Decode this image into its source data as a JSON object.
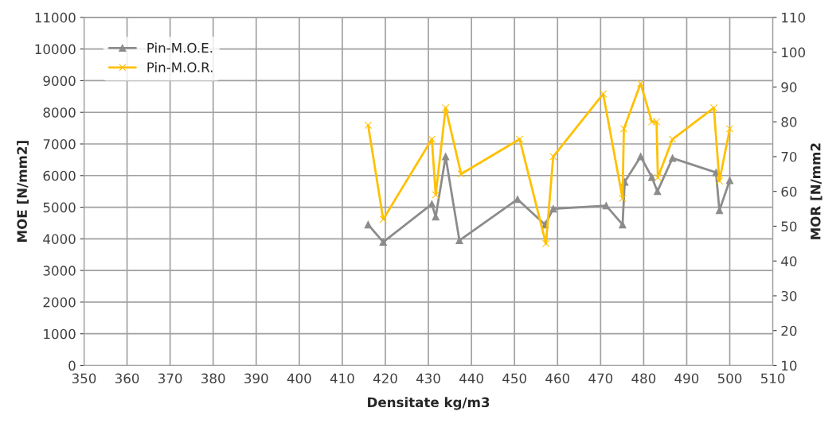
{
  "chart_data": {
    "type": "line",
    "xlabel": "Densitate kg/m3",
    "ylabel": "MOE [N/mm2]",
    "y2label": "MOR [N/mm2",
    "xlim": [
      350,
      510
    ],
    "xticks": [
      350,
      360,
      370,
      380,
      390,
      400,
      410,
      420,
      430,
      440,
      450,
      460,
      470,
      480,
      490,
      500,
      510
    ],
    "ylim": [
      0,
      11000
    ],
    "yticks": [
      0,
      1000,
      2000,
      3000,
      4000,
      5000,
      6000,
      7000,
      8000,
      9000,
      10000,
      11000
    ],
    "y2lim": [
      10,
      110
    ],
    "y2ticks": [
      10,
      20,
      30,
      40,
      50,
      60,
      70,
      80,
      90,
      100,
      110
    ],
    "grid": true,
    "legend": "top left",
    "series": [
      {
        "name": "Pin-M.O.E.",
        "color": "#8c8c8c",
        "marker": "triangle",
        "x": [
          416,
          419.5,
          430.8,
          431.7,
          434,
          437.2,
          450.7,
          457.1,
          459,
          471.3,
          475.1,
          475.6,
          479.3,
          481.9,
          483.2,
          486.7,
          496.8,
          497.6,
          500
        ],
        "values": [
          4450,
          3900,
          5100,
          4700,
          6600,
          3950,
          5250,
          4450,
          4950,
          5050,
          4450,
          5800,
          6600,
          5950,
          5500,
          6550,
          6100,
          4900,
          5850
        ]
      },
      {
        "name": "Pin-M.O.R.",
        "color": "#ffc000",
        "marker": "cross",
        "axis": "y2",
        "x": [
          416,
          419.5,
          430.8,
          431.7,
          434,
          437.6,
          451.2,
          457.3,
          459,
          470.6,
          475.1,
          475.4,
          479.3,
          481.9,
          483,
          483.3,
          486.7,
          496.3,
          497.6,
          500
        ],
        "values": [
          79,
          52,
          75,
          59,
          84,
          65,
          75,
          45,
          70,
          88,
          58,
          78,
          91,
          80,
          80,
          64,
          75,
          84,
          63,
          78
        ]
      }
    ]
  }
}
